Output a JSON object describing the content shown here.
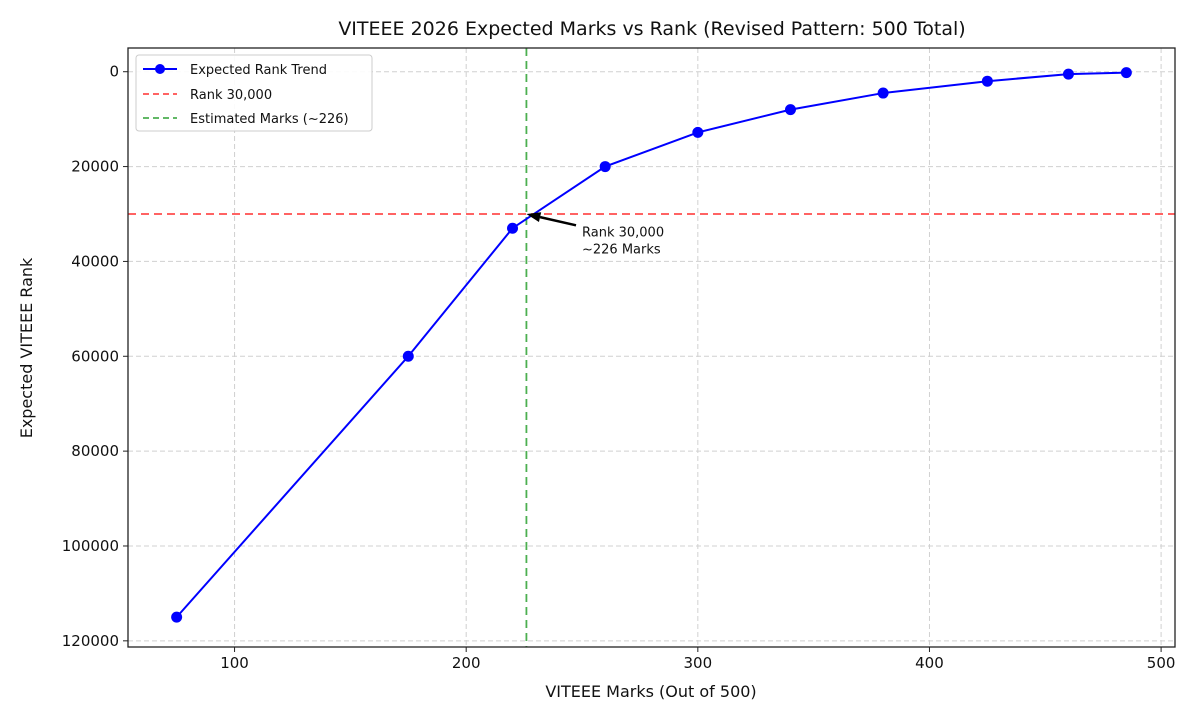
{
  "chart_data": {
    "type": "line",
    "title": "VITEEE 2026 Expected Marks vs Rank (Revised Pattern: 500 Total)",
    "xlabel": "VITEEE Marks (Out of 500)",
    "ylabel": "Expected VITEEE Rank",
    "xlim": [
      54,
      506
    ],
    "ylim": [
      121300,
      -5000
    ],
    "y_inverted": true,
    "grid": true,
    "legend_position": "upper-left",
    "x_ticks": [
      "100",
      "200",
      "300",
      "400",
      "500"
    ],
    "y_ticks": [
      "0",
      "20000",
      "40000",
      "60000",
      "80000",
      "100000",
      "120000"
    ],
    "series": [
      {
        "name": "Expected Rank Trend",
        "color": "#0000ff",
        "marker": "circle",
        "x": [
          75,
          175,
          220,
          260,
          300,
          340,
          380,
          425,
          460,
          485
        ],
        "y": [
          115000,
          60000,
          33000,
          20000,
          12800,
          8000,
          4500,
          2000,
          500,
          200
        ]
      }
    ],
    "reference_lines": [
      {
        "name": "Rank 30,000",
        "orientation": "horizontal",
        "value": 30000,
        "color": "#ff4d4d",
        "style": "dashed"
      },
      {
        "name": "Estimated Marks (~226)",
        "orientation": "vertical",
        "value": 226,
        "color": "#4caf50",
        "style": "dashed"
      }
    ],
    "annotation": {
      "lines": [
        "Rank 30,000",
        "~226 Marks"
      ],
      "point": [
        226,
        30000
      ],
      "text_at": [
        250,
        34500
      ]
    }
  }
}
